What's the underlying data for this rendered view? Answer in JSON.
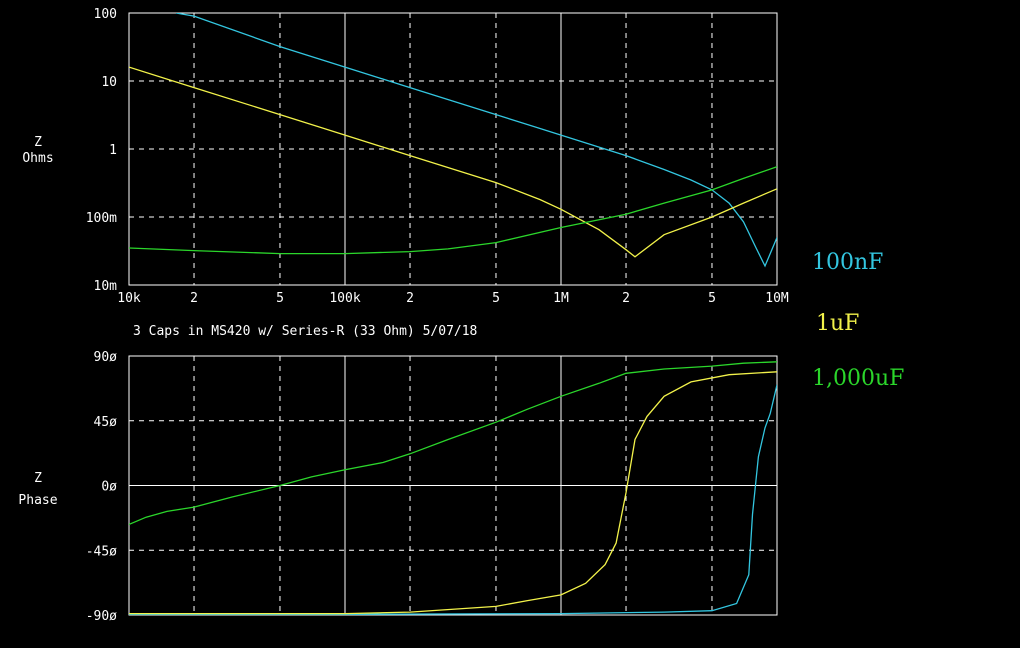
{
  "caption": "3 Caps in MS420 w/ Series-R (33 Ohm) 5/07/18",
  "legend": [
    {
      "label": "100nF",
      "color": "#33c6e0"
    },
    {
      "label": "1uF",
      "color": "#f2f24a"
    },
    {
      "label": "1,000uF",
      "color": "#2bd62b"
    }
  ],
  "chart_data": [
    {
      "type": "line",
      "ylabel": [
        "Z",
        "Ohms"
      ],
      "x_scale": "log",
      "y_scale": "log",
      "xlim": [
        10000,
        10000000
      ],
      "ylim": [
        0.01,
        100
      ],
      "y_ticks": [
        {
          "value": 100,
          "label": "100"
        },
        {
          "value": 10,
          "label": "10"
        },
        {
          "value": 1,
          "label": "1"
        },
        {
          "value": 0.1,
          "label": "100m"
        },
        {
          "value": 0.01,
          "label": "10m"
        }
      ],
      "x_ticks": [
        {
          "value": 10000,
          "label": "10k"
        },
        {
          "value": 20000,
          "label": "2"
        },
        {
          "value": 50000,
          "label": "5"
        },
        {
          "value": 100000,
          "label": "100k"
        },
        {
          "value": 200000,
          "label": "2"
        },
        {
          "value": 500000,
          "label": "5"
        },
        {
          "value": 1000000,
          "label": "1M"
        },
        {
          "value": 2000000,
          "label": "2"
        },
        {
          "value": 5000000,
          "label": "5"
        },
        {
          "value": 10000000,
          "label": "10M"
        }
      ],
      "grid": true,
      "series": [
        {
          "name": "100nF",
          "color": "#33c6e0",
          "points": [
            [
              16500,
              100
            ],
            [
              20000,
              90
            ],
            [
              50000,
              32
            ],
            [
              100000,
              16
            ],
            [
              200000,
              8
            ],
            [
              500000,
              3.2
            ],
            [
              1000000,
              1.6
            ],
            [
              2000000,
              0.8
            ],
            [
              3000000,
              0.5
            ],
            [
              4000000,
              0.35
            ],
            [
              5000000,
              0.25
            ],
            [
              6000000,
              0.16
            ],
            [
              7000000,
              0.085
            ],
            [
              8000000,
              0.035
            ],
            [
              8800000,
              0.019
            ],
            [
              10000000,
              0.05
            ]
          ]
        },
        {
          "name": "1uF",
          "color": "#f2f24a",
          "points": [
            [
              10000,
              16
            ],
            [
              20000,
              8
            ],
            [
              50000,
              3.2
            ],
            [
              100000,
              1.6
            ],
            [
              200000,
              0.8
            ],
            [
              500000,
              0.32
            ],
            [
              800000,
              0.18
            ],
            [
              1000000,
              0.13
            ],
            [
              1500000,
              0.065
            ],
            [
              2000000,
              0.033
            ],
            [
              2200000,
              0.026
            ],
            [
              3000000,
              0.055
            ],
            [
              5000000,
              0.1
            ],
            [
              7000000,
              0.16
            ],
            [
              10000000,
              0.26
            ]
          ]
        },
        {
          "name": "1,000uF",
          "color": "#2bd62b",
          "points": [
            [
              10000,
              0.035
            ],
            [
              20000,
              0.032
            ],
            [
              50000,
              0.029
            ],
            [
              100000,
              0.029
            ],
            [
              200000,
              0.031
            ],
            [
              300000,
              0.034
            ],
            [
              500000,
              0.042
            ],
            [
              1000000,
              0.07
            ],
            [
              2000000,
              0.11
            ],
            [
              3000000,
              0.16
            ],
            [
              5000000,
              0.25
            ],
            [
              7000000,
              0.37
            ],
            [
              10000000,
              0.55
            ]
          ]
        }
      ]
    },
    {
      "type": "line",
      "ylabel": [
        "Z",
        "Phase"
      ],
      "x_scale": "log",
      "xlim": [
        10000,
        10000000
      ],
      "ylim": [
        -90,
        90
      ],
      "y_ticks": [
        {
          "value": 90,
          "label": "90ø"
        },
        {
          "value": 45,
          "label": "45ø"
        },
        {
          "value": 0,
          "label": "0ø"
        },
        {
          "value": -45,
          "label": "-45ø"
        },
        {
          "value": -90,
          "label": "-90ø"
        }
      ],
      "x_ticks": [
        10000,
        20000,
        50000,
        100000,
        200000,
        500000,
        1000000,
        2000000,
        5000000,
        10000000
      ],
      "grid": true,
      "series": [
        {
          "name": "100nF",
          "color": "#33c6e0",
          "points": [
            [
              10000,
              -89.5
            ],
            [
              100000,
              -89.5
            ],
            [
              1000000,
              -89
            ],
            [
              3000000,
              -88
            ],
            [
              5000000,
              -87
            ],
            [
              6500000,
              -82
            ],
            [
              7400000,
              -62
            ],
            [
              7700000,
              -20
            ],
            [
              8200000,
              20
            ],
            [
              8800000,
              40
            ],
            [
              9300000,
              50
            ],
            [
              10000000,
              70
            ]
          ]
        },
        {
          "name": "1uF",
          "color": "#f2f24a",
          "points": [
            [
              10000,
              -89
            ],
            [
              100000,
              -89
            ],
            [
              200000,
              -88
            ],
            [
              500000,
              -84
            ],
            [
              700000,
              -80
            ],
            [
              1000000,
              -76
            ],
            [
              1300000,
              -68
            ],
            [
              1600000,
              -55
            ],
            [
              1800000,
              -40
            ],
            [
              2000000,
              -5
            ],
            [
              2200000,
              32
            ],
            [
              2500000,
              48
            ],
            [
              3000000,
              62
            ],
            [
              4000000,
              72
            ],
            [
              6000000,
              77
            ],
            [
              10000000,
              79
            ]
          ]
        },
        {
          "name": "1,000uF",
          "color": "#2bd62b",
          "points": [
            [
              10000,
              -27
            ],
            [
              12000,
              -22
            ],
            [
              15000,
              -18
            ],
            [
              20000,
              -15
            ],
            [
              30000,
              -8
            ],
            [
              50000,
              0
            ],
            [
              70000,
              6
            ],
            [
              100000,
              11
            ],
            [
              150000,
              16
            ],
            [
              200000,
              22
            ],
            [
              300000,
              32
            ],
            [
              500000,
              44
            ],
            [
              700000,
              53
            ],
            [
              1000000,
              62
            ],
            [
              1500000,
              71
            ],
            [
              2000000,
              78
            ],
            [
              3000000,
              81
            ],
            [
              5000000,
              83
            ],
            [
              7000000,
              85
            ],
            [
              10000000,
              86
            ]
          ]
        }
      ]
    }
  ]
}
